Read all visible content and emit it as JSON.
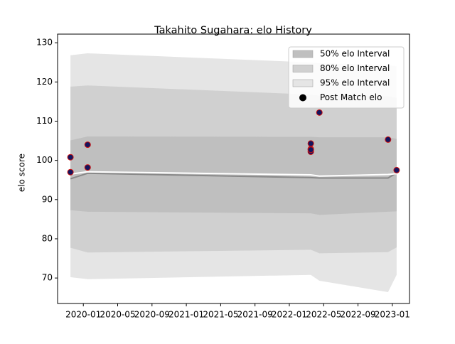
{
  "chart_data": {
    "type": "scatter",
    "title": "Takahito Sugahara: elo History",
    "ylabel": "elo score",
    "xlim": [
      "2019-10",
      "2023-03"
    ],
    "xticks": [
      "2020-01",
      "2020-05",
      "2020-09",
      "2021-01",
      "2021-05",
      "2021-09",
      "2022-01",
      "2022-05",
      "2022-09",
      "2023-01"
    ],
    "ylim": [
      63.5,
      132.2
    ],
    "yticks": [
      70,
      80,
      90,
      100,
      110,
      120,
      130
    ],
    "bands_x": [
      "2019-11",
      "2020-01",
      "2022-03",
      "2022-04",
      "2022-12",
      "2023-01"
    ],
    "bands": [
      {
        "name": "50% elo Interval",
        "color": "#bfbfbf",
        "upper": [
          105.1,
          106.1,
          106.0,
          105.9,
          105.9,
          105.5
        ],
        "lower": [
          87.3,
          86.9,
          86.5,
          86.1,
          86.9,
          87.0
        ]
      },
      {
        "name": "80% elo Interval",
        "color": "#d0d0d0",
        "upper": [
          118.8,
          119.1,
          116.8,
          116.5,
          116.3,
          116.0
        ],
        "lower": [
          77.7,
          76.5,
          77.2,
          76.3,
          76.6,
          77.8
        ]
      },
      {
        "name": "95% elo Interval",
        "color": "#e5e5e5",
        "upper": [
          126.8,
          127.3,
          125.0,
          124.8,
          124.3,
          124.0
        ],
        "lower": [
          70.2,
          69.7,
          70.8,
          69.3,
          66.4,
          70.8
        ]
      }
    ],
    "lines": [
      {
        "color": "#888888",
        "values": [
          95.3,
          96.7,
          95.6,
          95.5,
          95.5,
          96.8
        ]
      },
      {
        "color": "#ffffff",
        "values": [
          96.5,
          97.1,
          96.3,
          96.0,
          96.4,
          96.6
        ]
      }
    ],
    "series": [
      {
        "name": "Post Match elo",
        "color": "#14145e",
        "edge_color": "#cc1111",
        "legend_color": "#000000",
        "x": [
          "2019-11",
          "2019-11",
          "2020-01",
          "2020-01",
          "2022-03",
          "2022-03",
          "2022-03",
          "2022-03",
          "2022-04",
          "2022-12",
          "2023-01"
        ],
        "values": [
          100.8,
          97.0,
          98.2,
          104.0,
          104.3,
          102.2,
          102.9,
          102.7,
          112.2,
          105.3,
          97.5
        ]
      }
    ],
    "legend": "upper right"
  }
}
